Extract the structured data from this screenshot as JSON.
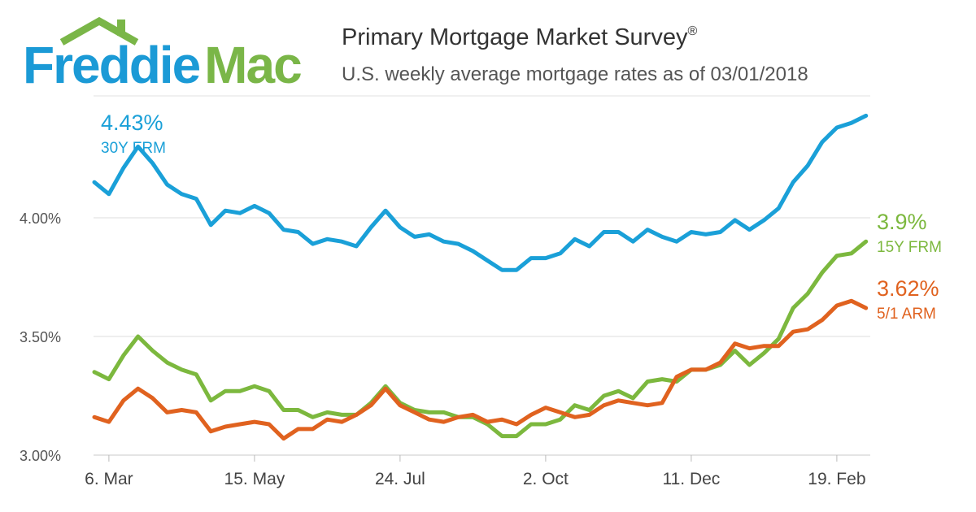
{
  "brand": {
    "word1": "Freddie",
    "word2": "Mac",
    "blue": "#1b9ad6",
    "green": "#7ab648"
  },
  "header": {
    "title": "Primary Mortgage Market Survey",
    "title_mark": "®",
    "subtitle": "U.S. weekly average mortgage rates as of 03/01/2018"
  },
  "chart_data": {
    "type": "line",
    "title": "Primary Mortgage Market Survey®",
    "subtitle": "U.S. weekly average mortgage rates as of 03/01/2018",
    "grid": true,
    "legend": "end-of-line labels",
    "ylim": [
      3.0,
      4.5
    ],
    "yticks": [
      {
        "value": 3.0,
        "label": "3.00%"
      },
      {
        "value": 3.5,
        "label": "3.50%"
      },
      {
        "value": 4.0,
        "label": "4.00%"
      }
    ],
    "xticks": [
      {
        "index": 1,
        "label": "6. Mar"
      },
      {
        "index": 11,
        "label": "15. May"
      },
      {
        "index": 21,
        "label": "24. Jul"
      },
      {
        "index": 31,
        "label": "2. Oct"
      },
      {
        "index": 41,
        "label": "11. Dec"
      },
      {
        "index": 51,
        "label": "19. Feb"
      }
    ],
    "series": [
      {
        "name": "30Y FRM",
        "color": "#1aa0d8",
        "end_label": "4.43%",
        "values": [
          4.15,
          4.1,
          4.21,
          4.3,
          4.23,
          4.14,
          4.1,
          4.08,
          3.97,
          4.03,
          4.02,
          4.05,
          4.02,
          3.95,
          3.94,
          3.89,
          3.91,
          3.9,
          3.88,
          3.96,
          4.03,
          3.96,
          3.92,
          3.93,
          3.9,
          3.89,
          3.86,
          3.82,
          3.78,
          3.78,
          3.83,
          3.83,
          3.85,
          3.91,
          3.88,
          3.94,
          3.94,
          3.9,
          3.95,
          3.92,
          3.9,
          3.94,
          3.93,
          3.94,
          3.99,
          3.95,
          3.99,
          4.04,
          4.15,
          4.22,
          4.32,
          4.38,
          4.4,
          4.43
        ]
      },
      {
        "name": "15Y FRM",
        "color": "#7cb83e",
        "end_label": "3.9%",
        "values": [
          3.35,
          3.32,
          3.42,
          3.5,
          3.44,
          3.39,
          3.36,
          3.34,
          3.23,
          3.27,
          3.27,
          3.29,
          3.27,
          3.19,
          3.19,
          3.16,
          3.18,
          3.17,
          3.17,
          3.22,
          3.29,
          3.22,
          3.19,
          3.18,
          3.18,
          3.16,
          3.16,
          3.13,
          3.08,
          3.08,
          3.13,
          3.13,
          3.15,
          3.21,
          3.19,
          3.25,
          3.27,
          3.24,
          3.31,
          3.32,
          3.31,
          3.36,
          3.36,
          3.38,
          3.44,
          3.38,
          3.43,
          3.49,
          3.62,
          3.68,
          3.77,
          3.84,
          3.85,
          3.9
        ]
      },
      {
        "name": "5/1 ARM",
        "color": "#e0621f",
        "end_label": "3.62%",
        "values": [
          3.16,
          3.14,
          3.23,
          3.28,
          3.24,
          3.18,
          3.19,
          3.18,
          3.1,
          3.12,
          3.13,
          3.14,
          3.13,
          3.07,
          3.11,
          3.11,
          3.15,
          3.14,
          3.17,
          3.21,
          3.28,
          3.21,
          3.18,
          3.15,
          3.14,
          3.16,
          3.17,
          3.14,
          3.15,
          3.13,
          3.17,
          3.2,
          3.18,
          3.16,
          3.17,
          3.21,
          3.23,
          3.22,
          3.21,
          3.22,
          3.33,
          3.36,
          3.36,
          3.39,
          3.47,
          3.45,
          3.46,
          3.46,
          3.52,
          3.53,
          3.57,
          3.63,
          3.65,
          3.62
        ]
      }
    ]
  }
}
